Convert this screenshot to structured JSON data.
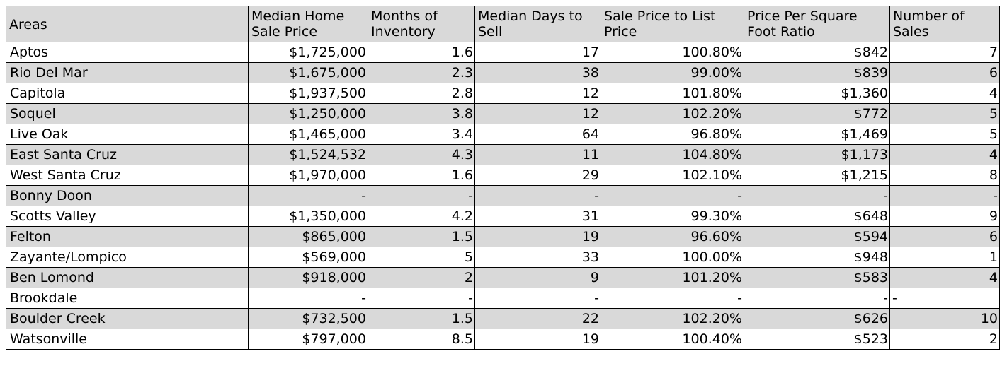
{
  "headers": [
    "Areas",
    "Median Home Sale Price",
    "Months of Inventory",
    "Median Days to Sell",
    "Sale Price to List Price",
    "Price Per Square Foot Ratio",
    "Number of Sales"
  ],
  "rows": [
    [
      "Aptos",
      "$1,725,000",
      "1.6",
      "17",
      "100.80%",
      "$842",
      "7"
    ],
    [
      "Rio Del Mar",
      "$1,675,000",
      "2.3",
      "38",
      "99.00%",
      "$839",
      "6"
    ],
    [
      "Capitola",
      "$1,937,500",
      "2.8",
      "12",
      "101.80%",
      "$1,360",
      "4"
    ],
    [
      "Soquel",
      "$1,250,000",
      "3.8",
      "12",
      "102.20%",
      "$772",
      "5"
    ],
    [
      "Live Oak",
      "$1,465,000",
      "3.4",
      "64",
      "96.80%",
      "$1,469",
      "5"
    ],
    [
      "East Santa Cruz",
      "$1,524,532",
      "4.3",
      "11",
      "104.80%",
      "$1,173",
      "4"
    ],
    [
      "West Santa Cruz",
      "$1,970,000",
      "1.6",
      "29",
      "102.10%",
      "$1,215",
      "8"
    ],
    [
      "Bonny Doon",
      "-",
      "-",
      "-",
      "-",
      "-",
      "-"
    ],
    [
      "Scotts Valley",
      "$1,350,000",
      "4.2",
      "31",
      "99.30%",
      "$648",
      "9"
    ],
    [
      "Felton",
      "$865,000",
      "1.5",
      "19",
      "96.60%",
      "$594",
      "6"
    ],
    [
      "Zayante/Lompico",
      "$569,000",
      "5",
      "33",
      "100.00%",
      "$948",
      "1"
    ],
    [
      "Ben Lomond",
      "$918,000",
      "2",
      "9",
      "101.20%",
      "$583",
      "4"
    ],
    [
      "Brookdale",
      "-",
      "-",
      "-",
      "-",
      "-",
      "-"
    ],
    [
      "Boulder Creek",
      "$732,500",
      "1.5",
      "22",
      "102.20%",
      "$626",
      "10"
    ],
    [
      "Watsonville",
      "$797,000",
      "8.5",
      "19",
      "100.40%",
      "$523",
      "2"
    ]
  ],
  "colors": {
    "header_bg": "#d9d9d9",
    "shaded_row_bg": "#d9d9d9",
    "border": "#000000"
  }
}
